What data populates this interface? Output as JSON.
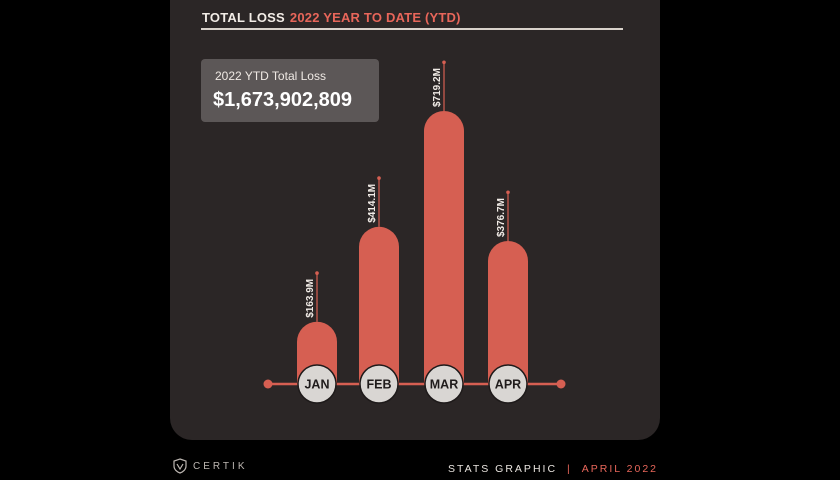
{
  "header": {
    "title_main": "TOTAL LOSS",
    "title_accent": "2022 YEAR TO DATE (YTD)"
  },
  "total": {
    "label": "2022 YTD Total Loss",
    "value": "$1,673,902,809"
  },
  "footer": {
    "brand": "CERTIK",
    "stats": "STATS GRAPHIC",
    "separator": "|",
    "date": "APRIL 2022"
  },
  "colors": {
    "bar": "#d65f52",
    "card": "#2b2626",
    "accent": "#e8665a",
    "circle": "#d9d6d3"
  },
  "chart_data": {
    "type": "bar",
    "title": "TOTAL LOSS 2022 YEAR TO DATE (YTD)",
    "categories": [
      "JAN",
      "FEB",
      "MAR",
      "APR"
    ],
    "values": [
      163.9,
      414.1,
      719.2,
      376.7
    ],
    "unit": "$M",
    "data_labels": [
      "$163.9M",
      "$414.1M",
      "$719.2M",
      "$376.7M"
    ],
    "ylim": [
      0,
      719.2
    ]
  }
}
